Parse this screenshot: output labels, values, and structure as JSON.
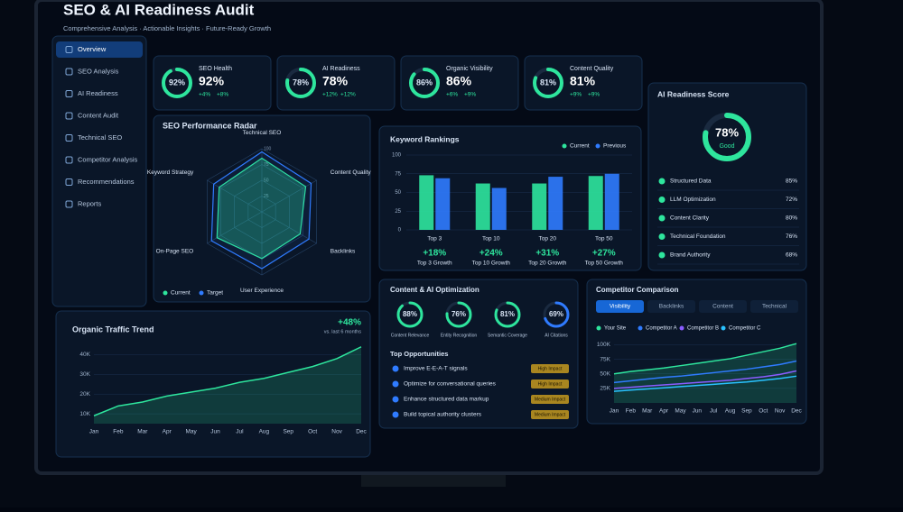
{
  "header": {
    "title": "SEO & AI Readiness Audit",
    "subtitle": "Comprehensive Analysis · Actionable Insights · Future-Ready Growth"
  },
  "sidebar": [
    "Overview",
    "SEO Analysis",
    "AI Readiness",
    "Content Audit",
    "Technical SEO",
    "Competitor Analysis",
    "Recommendations",
    "Reports"
  ],
  "kpis": [
    {
      "label": "SEO Health",
      "score": 92,
      "score_label": "92%",
      "changes": [
        "+4%",
        "+8%"
      ]
    },
    {
      "label": "AI Readiness",
      "score": 78,
      "score_label": "78%",
      "changes": [
        "+12%",
        "+12%"
      ]
    },
    {
      "label": "Organic Visibility",
      "score": 86,
      "score_label": "86%",
      "changes": [
        "+6%",
        "+9%"
      ]
    },
    {
      "label": "Content Quality",
      "score": 81,
      "score_label": "81%",
      "changes": [
        "+9%",
        "+9%"
      ]
    }
  ],
  "radar": {
    "type": "radar",
    "title": "SEO Performance Radar",
    "axes": [
      "Technical SEO",
      "Content Quality",
      "Backlinks",
      "User Experience",
      "On-Page SEO",
      "Keyword Strategy"
    ],
    "rlim": [
      0,
      100
    ],
    "rticks": [
      25,
      50,
      75,
      100
    ],
    "series": [
      {
        "name": "Current",
        "color": "#2ee59d",
        "values": [
          85,
          80,
          70,
          74,
          82,
          78
        ]
      },
      {
        "name": "Target",
        "color": "#2f7bff",
        "values": [
          95,
          90,
          86,
          90,
          92,
          88
        ]
      }
    ]
  },
  "keyword_rankings": {
    "type": "bar",
    "title": "Keyword Rankings",
    "categories": [
      "Top 3",
      "Top 10",
      "Top 20",
      "Top 50"
    ],
    "ylim": [
      0,
      100
    ],
    "yticks": [
      0,
      25,
      50,
      75,
      100
    ],
    "series": [
      {
        "name": "Current",
        "color": "#2ee59d",
        "values": [
          73,
          62,
          62,
          72
        ]
      },
      {
        "name": "Previous",
        "color": "#2f7bff",
        "values": [
          69,
          56,
          71,
          75
        ]
      }
    ],
    "growth": [
      {
        "change": "+18%",
        "caption": "Top 3 Growth"
      },
      {
        "change": "+24%",
        "caption": "Top 10 Growth"
      },
      {
        "change": "+31%",
        "caption": "Top 20 Growth"
      },
      {
        "change": "+27%",
        "caption": "Top 50 Growth"
      }
    ]
  },
  "ai_readiness": {
    "title": "AI Readiness Score",
    "score": 78,
    "score_label": "78%",
    "rating": "Good",
    "items": [
      {
        "label": "Structured Data",
        "value": "85%"
      },
      {
        "label": "LLM Optimization",
        "value": "72%"
      },
      {
        "label": "Content Clarity",
        "value": "80%"
      },
      {
        "label": "Technical Foundation",
        "value": "76%"
      },
      {
        "label": "Brand Authority",
        "value": "68%"
      }
    ]
  },
  "organic_traffic": {
    "type": "line",
    "title": "Organic Traffic Trend",
    "change": "+48%",
    "change_note": "vs. last 6 months",
    "x": [
      "Jan",
      "Feb",
      "Mar",
      "Apr",
      "May",
      "Jun",
      "Jul",
      "Aug",
      "Sep",
      "Oct",
      "Nov",
      "Dec"
    ],
    "ylim": [
      5000,
      48000
    ],
    "yticks": [
      {
        "value": 10000,
        "label": "10K"
      },
      {
        "value": 20000,
        "label": "20K"
      },
      {
        "value": 30000,
        "label": "30K"
      },
      {
        "value": 40000,
        "label": "40K"
      }
    ],
    "color": "#2ee59d",
    "values": [
      9000,
      14000,
      16000,
      19000,
      21000,
      23000,
      26000,
      28000,
      31000,
      34000,
      38000,
      44000
    ]
  },
  "content_ai": {
    "title": "Content & AI Optimization",
    "metrics": [
      {
        "label": "Content Relevance",
        "score": 88,
        "score_label": "88%"
      },
      {
        "label": "Entity Recognition",
        "score": 76,
        "score_label": "76%"
      },
      {
        "label": "Semantic Coverage",
        "score": 81,
        "score_label": "81%"
      },
      {
        "label": "AI Citations",
        "score": 69,
        "score_label": "69%"
      }
    ],
    "opportunities_title": "Top Opportunities",
    "opportunities": [
      {
        "text": "Improve E-E-A-T signals",
        "impact": "High Impact"
      },
      {
        "text": "Optimize for conversational queries",
        "impact": "High Impact"
      },
      {
        "text": "Enhance structured data markup",
        "impact": "Medium Impact"
      },
      {
        "text": "Build topical authority clusters",
        "impact": "Medium Impact"
      }
    ]
  },
  "competitor": {
    "type": "line",
    "title": "Competitor Comparison",
    "tabs": [
      "Visibility",
      "Backlinks",
      "Content",
      "Technical"
    ],
    "x": [
      "Jan",
      "Feb",
      "Mar",
      "Apr",
      "May",
      "Jun",
      "Jul",
      "Aug",
      "Sep",
      "Oct",
      "Nov",
      "Dec"
    ],
    "ylim": [
      0,
      110000
    ],
    "yticks": [
      {
        "value": 25000,
        "label": "25K"
      },
      {
        "value": 50000,
        "label": "50K"
      },
      {
        "value": 75000,
        "label": "75K"
      },
      {
        "value": 100000,
        "label": "100K"
      }
    ],
    "series": [
      {
        "name": "Your Site",
        "color": "#2ee59d",
        "values": [
          50000,
          54000,
          57000,
          60000,
          64000,
          68000,
          72000,
          76000,
          82000,
          88000,
          94000,
          102000
        ]
      },
      {
        "name": "Competitor A",
        "color": "#2f7bff",
        "values": [
          35000,
          38000,
          41000,
          44000,
          46000,
          49000,
          52000,
          55000,
          58000,
          62000,
          66000,
          72000
        ]
      },
      {
        "name": "Competitor B",
        "color": "#8a5cff",
        "values": [
          25000,
          27000,
          29000,
          31000,
          33000,
          35000,
          37000,
          39000,
          42000,
          45000,
          49000,
          55000
        ]
      },
      {
        "name": "Competitor C",
        "color": "#29c2ff",
        "values": [
          20000,
          22000,
          24000,
          26000,
          28000,
          30000,
          32000,
          34000,
          36000,
          39000,
          42000,
          46000
        ]
      }
    ]
  }
}
